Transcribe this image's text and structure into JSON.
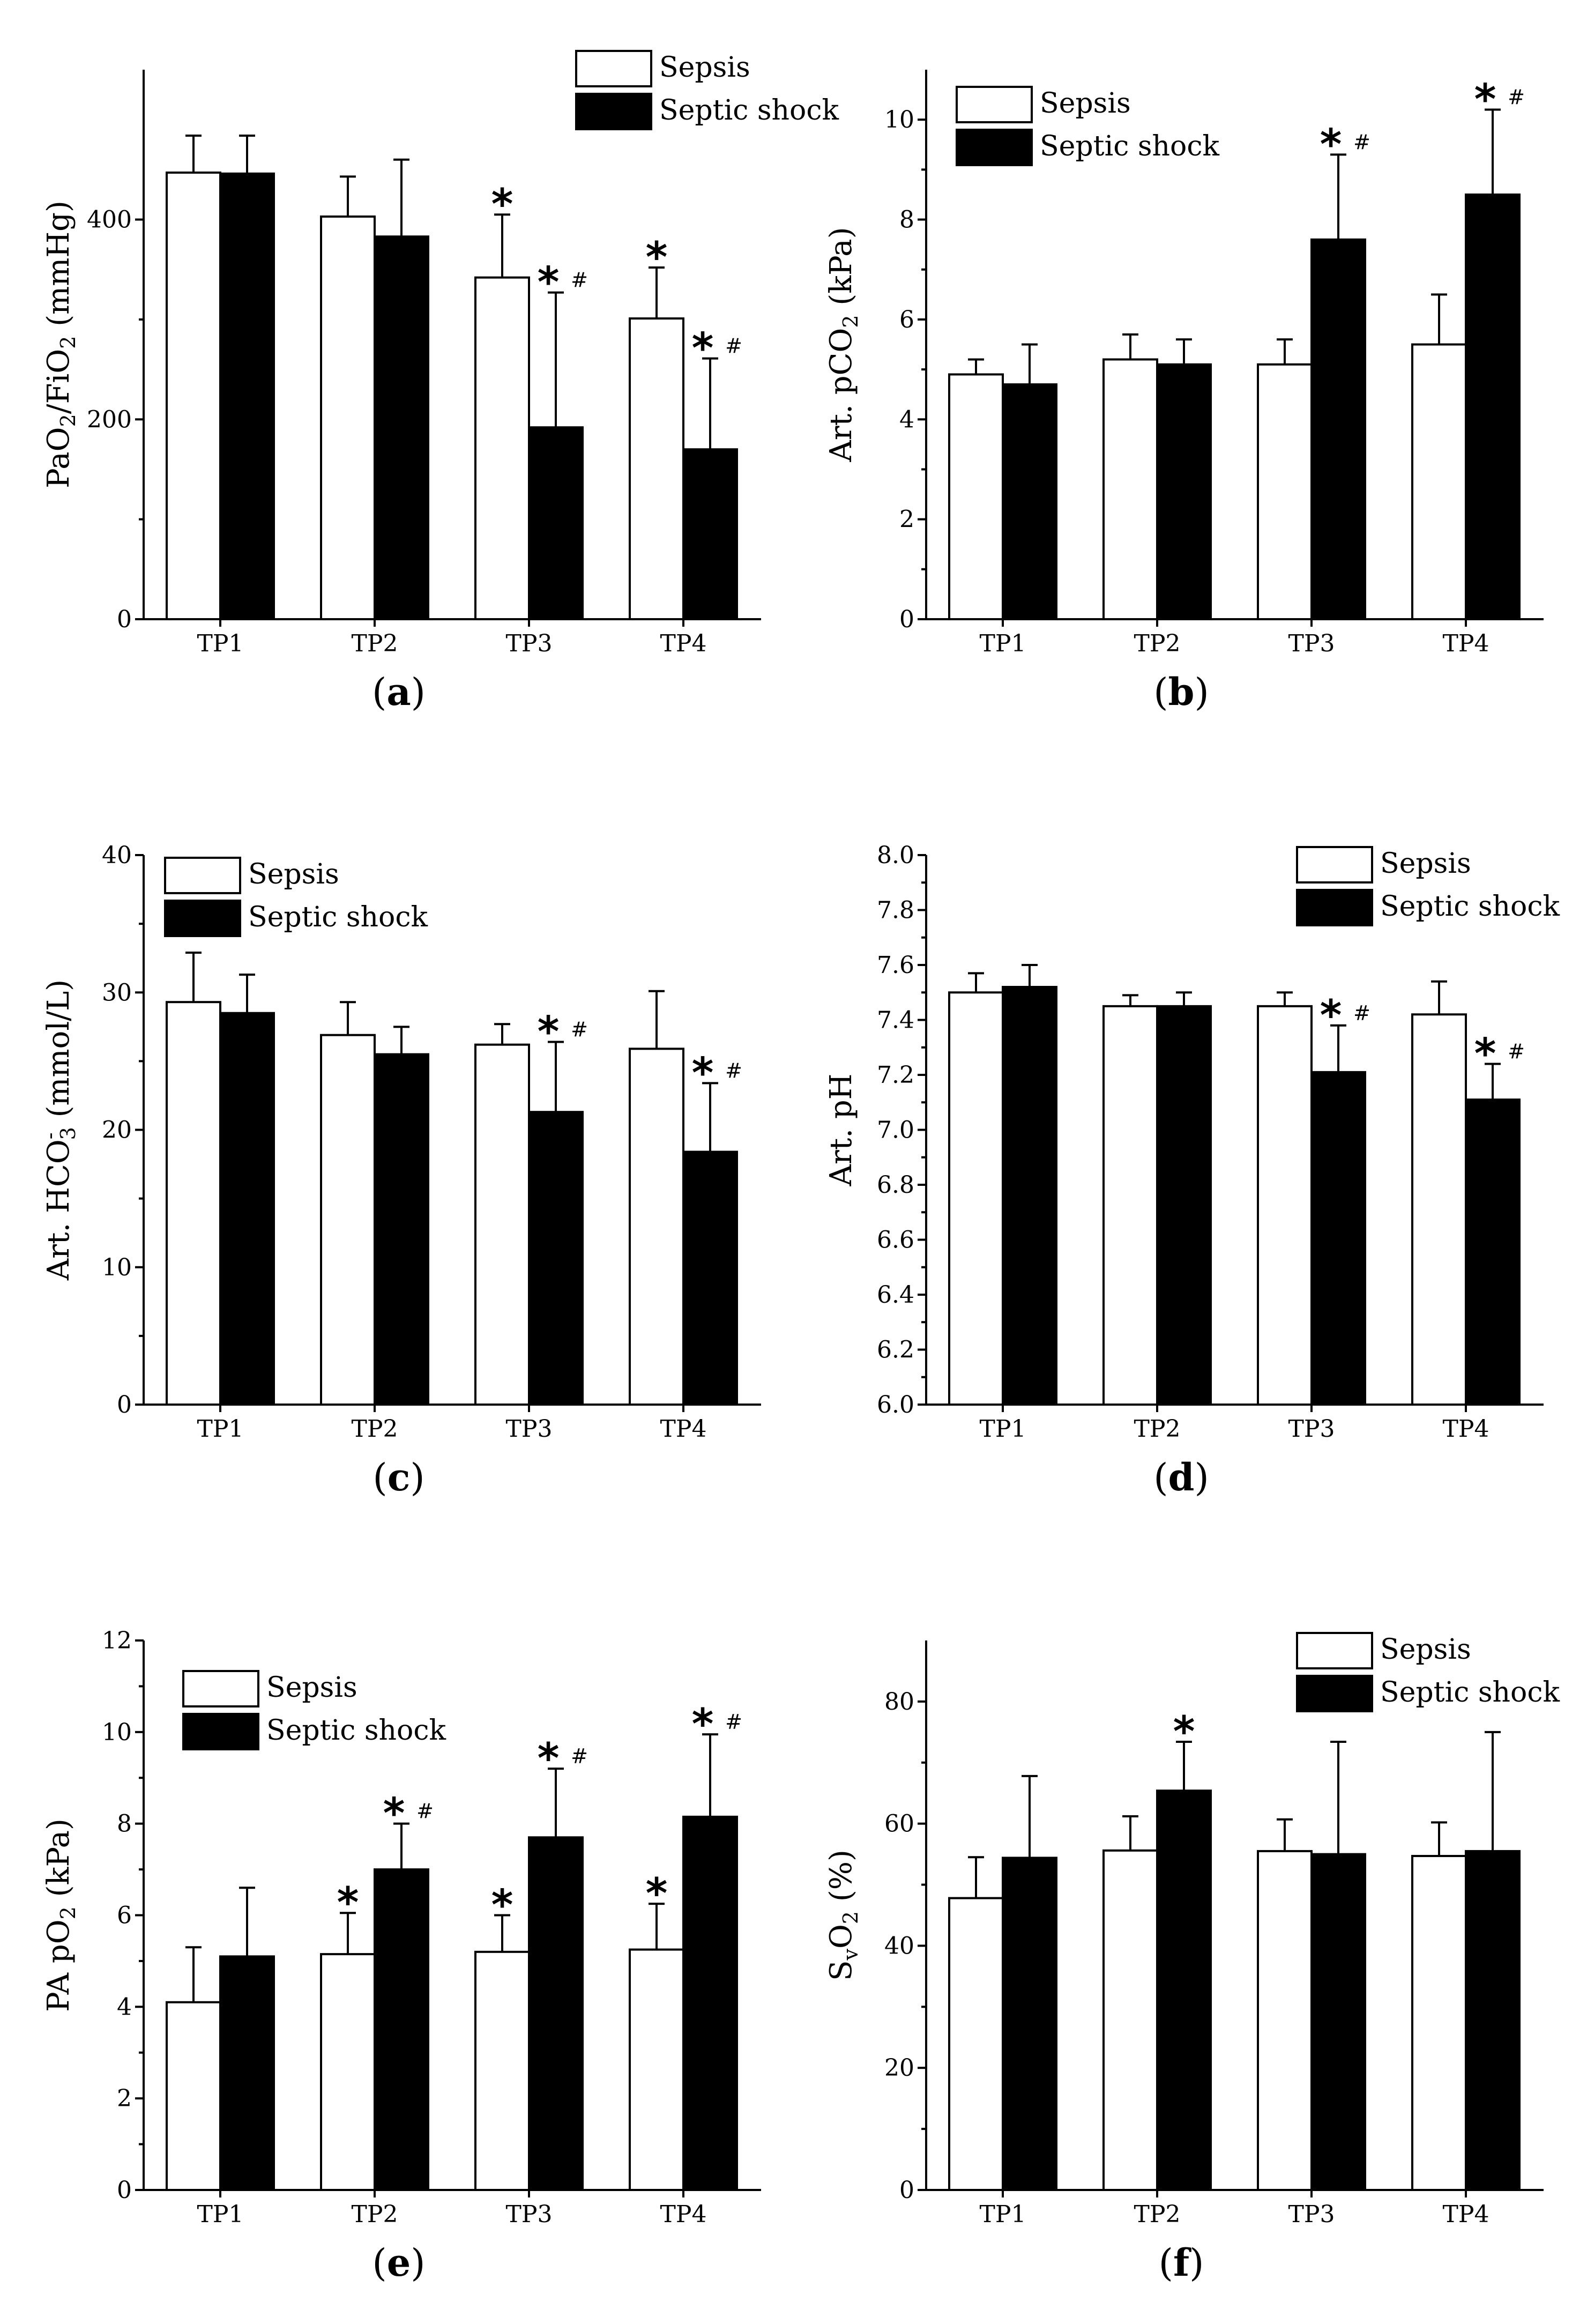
{
  "chart_data": [
    {
      "id": "a",
      "type": "bar",
      "panel_label": "a",
      "ylabel_parts": [
        [
          "PaO",
          ""
        ],
        [
          "2",
          "sub"
        ],
        [
          "/FiO",
          ""
        ],
        [
          "2",
          "sub"
        ],
        [
          " (mmHg)",
          ""
        ]
      ],
      "ylim": [
        0,
        550
      ],
      "yticks": [
        0,
        200,
        400
      ],
      "tick_labels": [
        "0",
        "200",
        "400"
      ],
      "categories": [
        "TP1",
        "TP2",
        "TP3",
        "TP4"
      ],
      "series": [
        {
          "name": "Sepsis",
          "values": [
            447,
            403,
            342,
            301
          ],
          "errors": [
            37,
            40,
            63,
            51
          ]
        },
        {
          "name": "Septic shock",
          "values": [
            446,
            383,
            192,
            170
          ],
          "errors": [
            38,
            77,
            135,
            91
          ]
        }
      ],
      "annotations": [
        {
          "category": 2,
          "series": 0,
          "star": "*",
          "hash": ""
        },
        {
          "category": 2,
          "series": 1,
          "star": "*",
          "hash": "#"
        },
        {
          "category": 3,
          "series": 0,
          "star": "*",
          "hash": ""
        },
        {
          "category": 3,
          "series": 1,
          "star": "*",
          "hash": "#"
        }
      ],
      "legend": {
        "position": "top-right",
        "labels": [
          "Sepsis",
          "Septic shock"
        ]
      }
    },
    {
      "id": "b",
      "type": "bar",
      "panel_label": "b",
      "ylabel_parts": [
        [
          "Art. pCO",
          ""
        ],
        [
          "2",
          "sub"
        ],
        [
          " (kPa)",
          ""
        ]
      ],
      "ylim": [
        0,
        11
      ],
      "yticks": [
        0,
        2,
        4,
        6,
        8,
        10
      ],
      "tick_labels": [
        "0",
        "2",
        "4",
        "6",
        "8",
        "10"
      ],
      "categories": [
        "TP1",
        "TP2",
        "TP3",
        "TP4"
      ],
      "series": [
        {
          "name": "Sepsis",
          "values": [
            4.9,
            5.2,
            5.1,
            5.5
          ],
          "errors": [
            0.3,
            0.5,
            0.5,
            1.0
          ]
        },
        {
          "name": "Septic shock",
          "values": [
            4.7,
            5.1,
            7.6,
            8.5
          ],
          "errors": [
            0.8,
            0.5,
            1.7,
            1.7
          ]
        }
      ],
      "annotations": [
        {
          "category": 2,
          "series": 1,
          "star": "*",
          "hash": "#"
        },
        {
          "category": 3,
          "series": 1,
          "star": "*",
          "hash": "#"
        }
      ],
      "legend": {
        "position": "top-left",
        "labels": [
          "Sepsis",
          "Septic shock"
        ]
      }
    },
    {
      "id": "c",
      "type": "bar",
      "panel_label": "c",
      "ylabel_parts": [
        [
          "Art. HCO",
          ""
        ],
        [
          "-",
          "sup"
        ],
        [
          "3",
          "sub"
        ],
        [
          " (mmol/L)",
          ""
        ]
      ],
      "ylim": [
        0,
        40
      ],
      "yticks": [
        0,
        10,
        20,
        30,
        40
      ],
      "tick_labels": [
        "0",
        "10",
        "20",
        "30",
        "40"
      ],
      "categories": [
        "TP1",
        "TP2",
        "TP3",
        "TP4"
      ],
      "series": [
        {
          "name": "Sepsis",
          "values": [
            29.3,
            26.9,
            26.2,
            25.9
          ],
          "errors": [
            3.6,
            2.4,
            1.5,
            4.2
          ]
        },
        {
          "name": "Septic shock",
          "values": [
            28.5,
            25.5,
            21.3,
            18.4
          ],
          "errors": [
            2.8,
            2.0,
            5.1,
            5.0
          ]
        }
      ],
      "annotations": [
        {
          "category": 2,
          "series": 1,
          "star": "*",
          "hash": "#"
        },
        {
          "category": 3,
          "series": 1,
          "star": "*",
          "hash": "#"
        }
      ],
      "legend": {
        "position": "top-left",
        "labels": [
          "Sepsis",
          "Septic shock"
        ]
      }
    },
    {
      "id": "d",
      "type": "bar",
      "panel_label": "d",
      "ylabel_parts": [
        [
          "Art. pH",
          ""
        ]
      ],
      "ylim": [
        6.0,
        8.0
      ],
      "yticks": [
        6.0,
        6.2,
        6.4,
        6.6,
        6.8,
        7.0,
        7.2,
        7.4,
        7.6,
        7.8,
        8.0
      ],
      "tick_labels": [
        "6.0",
        "6.2",
        "6.4",
        "6.6",
        "6.8",
        "7.0",
        "7.2",
        "7.4",
        "7.6",
        "7.8",
        "8.0"
      ],
      "categories": [
        "TP1",
        "TP2",
        "TP3",
        "TP4"
      ],
      "series": [
        {
          "name": "Sepsis",
          "values": [
            7.5,
            7.45,
            7.45,
            7.42
          ],
          "errors": [
            0.07,
            0.04,
            0.05,
            0.12
          ]
        },
        {
          "name": "Septic shock",
          "values": [
            7.52,
            7.45,
            7.21,
            7.11
          ],
          "errors": [
            0.08,
            0.05,
            0.17,
            0.13
          ]
        }
      ],
      "annotations": [
        {
          "category": 2,
          "series": 1,
          "star": "*",
          "hash": "#"
        },
        {
          "category": 3,
          "series": 1,
          "star": "*",
          "hash": "#"
        }
      ],
      "legend": {
        "position": "top-right",
        "labels": [
          "Sepsis",
          "Septic shock"
        ]
      }
    },
    {
      "id": "e",
      "type": "bar",
      "panel_label": "e",
      "ylabel_parts": [
        [
          "PA pO",
          ""
        ],
        [
          "2",
          "sub"
        ],
        [
          " (kPa)",
          ""
        ]
      ],
      "ylim": [
        0,
        12
      ],
      "yticks": [
        0,
        2,
        4,
        6,
        8,
        10,
        12
      ],
      "tick_labels": [
        "0",
        "2",
        "4",
        "6",
        "8",
        "10",
        "12"
      ],
      "categories": [
        "TP1",
        "TP2",
        "TP3",
        "TP4"
      ],
      "series": [
        {
          "name": "Sepsis",
          "values": [
            4.1,
            5.15,
            5.2,
            5.25
          ],
          "errors": [
            1.2,
            0.9,
            0.8,
            1.0
          ]
        },
        {
          "name": "Septic shock",
          "values": [
            5.1,
            7.0,
            7.7,
            8.15
          ],
          "errors": [
            1.5,
            1.0,
            1.5,
            1.8
          ]
        }
      ],
      "annotations": [
        {
          "category": 1,
          "series": 0,
          "star": "*",
          "hash": ""
        },
        {
          "category": 1,
          "series": 1,
          "star": "*",
          "hash": "#"
        },
        {
          "category": 2,
          "series": 0,
          "star": "*",
          "hash": ""
        },
        {
          "category": 2,
          "series": 1,
          "star": "*",
          "hash": "#"
        },
        {
          "category": 3,
          "series": 0,
          "star": "*",
          "hash": ""
        },
        {
          "category": 3,
          "series": 1,
          "star": "*",
          "hash": "#"
        }
      ],
      "legend": {
        "position": "top-left",
        "labels": [
          "Sepsis",
          "Septic shock"
        ]
      }
    },
    {
      "id": "f",
      "type": "bar",
      "panel_label": "f",
      "ylabel_parts": [
        [
          "S",
          ""
        ],
        [
          "v",
          "sub"
        ],
        [
          "O",
          ""
        ],
        [
          "2",
          "sub"
        ],
        [
          " (%)",
          ""
        ]
      ],
      "ylim": [
        0,
        90
      ],
      "yticks": [
        0,
        20,
        40,
        60,
        80
      ],
      "tick_labels": [
        "0",
        "20",
        "40",
        "60",
        "80"
      ],
      "categories": [
        "TP1",
        "TP2",
        "TP3",
        "TP4"
      ],
      "series": [
        {
          "name": "Sepsis",
          "values": [
            47.8,
            55.6,
            55.5,
            54.7
          ],
          "errors": [
            6.7,
            5.6,
            5.2,
            5.5
          ]
        },
        {
          "name": "Septic shock",
          "values": [
            54.4,
            65.4,
            55.0,
            55.5
          ],
          "errors": [
            13.4,
            8.0,
            18.4,
            19.5
          ]
        }
      ],
      "annotations": [
        {
          "category": 1,
          "series": 1,
          "star": "*",
          "hash": ""
        }
      ],
      "legend": {
        "position": "top-right",
        "labels": [
          "Sepsis",
          "Septic shock"
        ]
      }
    }
  ]
}
